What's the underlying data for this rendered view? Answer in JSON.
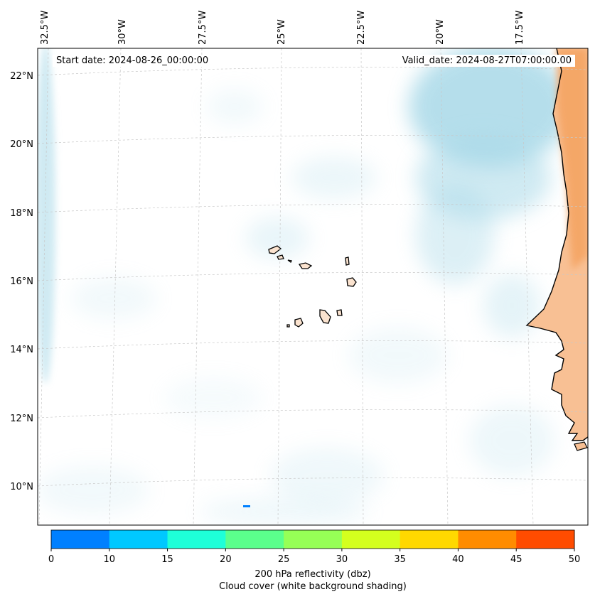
{
  "map": {
    "lon_labels": [
      "32.5°W",
      "30°W",
      "27.5°W",
      "25°W",
      "22.5°W",
      "20°W",
      "17.5°W"
    ],
    "lat_labels": [
      "22°N",
      "20°N",
      "18°N",
      "16°N",
      "14°N",
      "12°N",
      "10°N"
    ],
    "start_date": "Start date: 2024-08-26_00:00:00",
    "valid_date": "Valid_date: 2024-08-27T07:00:00.00",
    "land_color": "#f4a360",
    "cloud_color": "#a9d9e8",
    "coastline_color": "#000000"
  },
  "colorbar": {
    "ticks": [
      "0",
      "10",
      "15",
      "20",
      "25",
      "30",
      "35",
      "40",
      "45",
      "50"
    ],
    "colors": [
      "#0080ff",
      "#00c8ff",
      "#1effd8",
      "#5bff8c",
      "#96ff56",
      "#d4ff1e",
      "#ffd800",
      "#ff8c00",
      "#ff4c00"
    ],
    "label_line1": "200 hPa reflectivity (dbz)",
    "label_line2": "Cloud cover (white background shading)"
  }
}
